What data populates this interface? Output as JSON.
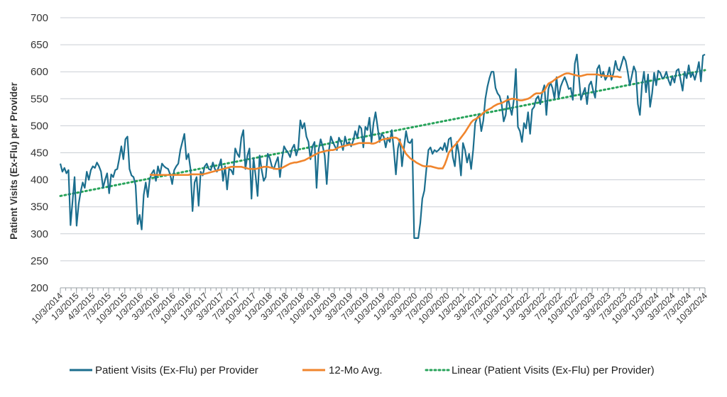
{
  "chart_data": {
    "type": "line",
    "ylabel": "Patient Visits (Ex-Flu) per Provider",
    "ylim": [
      200,
      700
    ],
    "yticks": [
      200,
      250,
      300,
      350,
      400,
      450,
      500,
      550,
      600,
      650,
      700
    ],
    "grid": true,
    "legend_position": "bottom",
    "x_tick_labels": [
      "10/3/2014",
      "1/3/2015",
      "4/3/2015",
      "7/3/2015",
      "10/3/2015",
      "1/3/2016",
      "3/3/2016",
      "7/3/2016",
      "10/3/2016",
      "1/3/2017",
      "3/3/2017",
      "7/3/2017",
      "10/3/2017",
      "1/3/2018",
      "3/3/2018",
      "7/3/2018",
      "10/3/2018",
      "1/3/2019",
      "3/3/2019",
      "7/3/2019",
      "10/3/2019",
      "1/3/2020",
      "3/3/2020",
      "7/3/2020",
      "10/3/2020",
      "1/3/2021",
      "3/3/2021",
      "7/3/2021",
      "10/3/2021",
      "1/3/2022",
      "3/3/2022",
      "7/3/2022",
      "10/3/2022",
      "1/3/2023",
      "3/3/2023",
      "7/3/2023",
      "10/3/2023",
      "1/3/2024",
      "3/3/2024",
      "7/3/2024",
      "10/3/2024"
    ],
    "series": [
      {
        "name": "Patient Visits (Ex-Flu) per Provider",
        "color": "#1b6e8e",
        "style": "solid",
        "values": [
          430,
          415,
          422,
          412,
          418,
          316,
          360,
          405,
          315,
          355,
          378,
          395,
          385,
          415,
          400,
          418,
          425,
          422,
          432,
          425,
          415,
          385,
          400,
          412,
          375,
          410,
          405,
          418,
          420,
          440,
          462,
          438,
          475,
          480,
          420,
          408,
          405,
          390,
          318,
          335,
          308,
          372,
          395,
          368,
          402,
          412,
          418,
          398,
          425,
          410,
          430,
          425,
          422,
          420,
          410,
          392,
          418,
          425,
          430,
          455,
          470,
          485,
          438,
          448,
          420,
          342,
          395,
          405,
          352,
          415,
          408,
          425,
          430,
          420,
          418,
          432,
          420,
          415,
          425,
          438,
          398,
          425,
          382,
          420,
          418,
          410,
          458,
          448,
          442,
          478,
          492,
          420,
          445,
          458,
          365,
          440,
          408,
          370,
          445,
          418,
          398,
          405,
          448,
          440,
          425,
          420,
          432,
          442,
          405,
          438,
          462,
          455,
          450,
          442,
          458,
          465,
          445,
          458,
          510,
          495,
          505,
          480,
          470,
          438,
          462,
          470,
          385,
          455,
          475,
          462,
          445,
          392,
          452,
          480,
          470,
          462,
          455,
          478,
          470,
          455,
          480,
          465,
          470,
          462,
          472,
          490,
          478,
          500,
          495,
          460,
          498,
          492,
          515,
          470,
          505,
          525,
          498,
          470,
          485,
          480,
          460,
          478,
          470,
          492,
          455,
          410,
          458,
          475,
          425,
          460,
          490,
          470,
          468,
          475,
          292,
          292,
          292,
          320,
          365,
          380,
          420,
          455,
          460,
          448,
          455,
          452,
          455,
          460,
          455,
          468,
          452,
          475,
          478,
          442,
          425,
          470,
          448,
          408,
          468,
          455,
          432,
          448,
          420,
          455,
          505,
          515,
          520,
          490,
          510,
          550,
          572,
          588,
          600,
          600,
          570,
          560,
          555,
          540,
          508,
          520,
          555,
          535,
          520,
          548,
          605,
          498,
          490,
          470,
          505,
          495,
          525,
          485,
          530,
          535,
          550,
          555,
          540,
          562,
          575,
          520,
          568,
          580,
          570,
          550,
          590,
          552,
          572,
          582,
          590,
          580,
          568,
          570,
          548,
          615,
          632,
          590,
          548,
          560,
          570,
          540,
          575,
          582,
          565,
          552,
          605,
          612,
          590,
          600,
          585,
          592,
          608,
          585,
          598,
          620,
          605,
          602,
          615,
          628,
          620,
          600,
          575,
          592,
          610,
          600,
          540,
          520,
          575,
          600,
          562,
          595,
          535,
          560,
          598,
          575,
          602,
          598,
          588,
          590,
          600,
          585,
          575,
          592,
          580,
          602,
          605,
          585,
          565,
          600,
          588,
          612,
          590,
          598,
          585,
          600,
          618,
          582,
          630,
          632
        ]
      },
      {
        "name": "12-Mo Avg.",
        "color": "#f0852d",
        "style": "solid",
        "start_index": 44,
        "values": [
          410,
          409,
          409,
          409,
          409,
          409,
          409,
          409,
          409,
          409,
          409,
          409,
          409,
          409,
          409,
          409,
          409,
          409,
          409,
          409,
          410,
          410,
          410,
          410,
          410,
          410,
          410,
          411,
          412,
          413,
          414,
          415,
          416,
          417,
          418,
          419,
          420,
          421,
          422,
          423,
          424,
          424,
          424,
          424,
          424,
          424,
          423,
          422,
          421,
          420,
          420,
          420,
          420,
          421,
          422,
          423,
          424,
          424,
          424,
          423,
          422,
          421,
          420,
          420,
          421,
          422,
          424,
          426,
          428,
          430,
          431,
          432,
          432,
          433,
          434,
          435,
          436,
          438,
          440,
          442,
          444,
          446,
          448,
          450,
          451,
          452,
          453,
          454,
          454,
          455,
          455,
          456,
          458,
          460,
          461,
          462,
          463,
          464,
          465,
          465,
          465,
          466,
          467,
          468,
          468,
          468,
          468,
          468,
          468,
          467,
          467,
          468,
          470,
          472,
          474,
          475,
          476,
          476,
          477,
          478,
          478,
          478,
          476,
          470,
          462,
          455,
          448,
          444,
          440,
          437,
          435,
          432,
          430,
          428,
          426,
          425,
          425,
          425,
          425,
          424,
          423,
          422,
          421,
          421,
          421,
          428,
          438,
          450,
          455,
          460,
          464,
          468,
          473,
          478,
          483,
          488,
          494,
          500,
          506,
          510,
          512,
          514,
          517,
          520,
          524,
          527,
          529,
          531,
          533,
          536,
          538,
          540,
          541,
          542,
          544,
          546,
          548,
          549,
          550,
          550,
          549,
          548,
          547,
          547,
          548,
          549,
          550,
          552,
          555,
          558,
          560,
          560,
          560,
          562,
          565,
          572,
          578,
          580,
          582,
          585,
          588,
          590,
          592,
          594,
          596,
          597,
          597,
          596,
          595,
          594,
          593,
          592,
          592,
          593,
          594,
          595,
          595,
          595,
          595,
          595,
          595,
          594,
          593,
          593,
          592,
          592,
          592,
          592,
          591,
          591,
          591,
          590,
          590
        ]
      },
      {
        "name": "Linear (Patient Visits (Ex-Flu) per Provider)",
        "color": "#27a35a",
        "style": "dotted",
        "start_value": 370,
        "end_value": 603
      }
    ]
  },
  "legend": {
    "items": [
      {
        "label": "Patient Visits (Ex-Flu) per Provider",
        "color": "#1b6e8e",
        "style": "solid"
      },
      {
        "label": "12-Mo Avg.",
        "color": "#f0852d",
        "style": "solid"
      },
      {
        "label": "Linear (Patient Visits (Ex-Flu) per Provider)",
        "color": "#27a35a",
        "style": "dotted"
      }
    ]
  }
}
